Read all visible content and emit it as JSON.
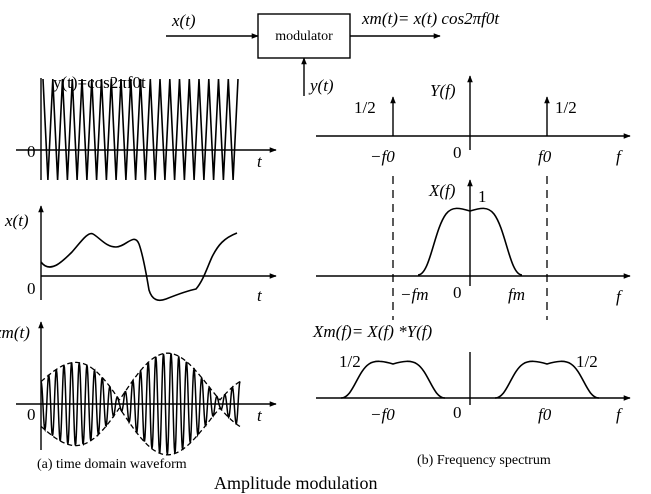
{
  "block": {
    "input_label": "x(t)",
    "box_label": "modulator",
    "carrier_input_label": "y(t)",
    "output_label": "xm(t)= x(t) cos2πf0t"
  },
  "time_domain": {
    "carrier_label": "y(t)=cos2πf0t",
    "message_label": "x(t)",
    "modulated_label": "xm(t)",
    "origin": "0",
    "time_axis": "t"
  },
  "freq_domain": {
    "Y_label": "Y(f)",
    "X_label": "X(f)",
    "Xm_label": "Xm(f)= X(f) *Y(f)",
    "half": "1/2",
    "one": "1",
    "neg_f0": "−f0",
    "pos_f0": "f0",
    "neg_fm": "−fm",
    "pos_fm": "fm",
    "origin": "0",
    "freq_axis": "f"
  },
  "captions": {
    "a": "(a) time domain waveform",
    "b": "(b) Frequency spectrum",
    "title": "Amplitude modulation"
  }
}
